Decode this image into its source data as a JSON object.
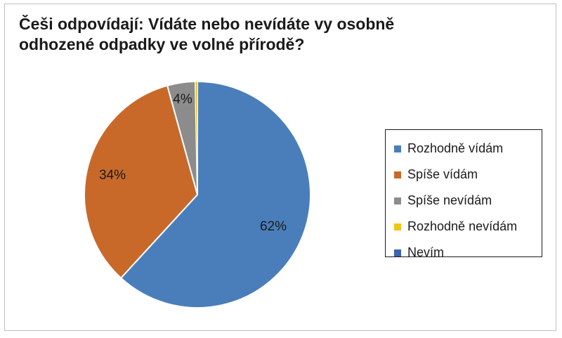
{
  "chart_data": {
    "type": "pie",
    "title": "Češi odpovídají: Vídáte nebo nevídáte vy osobně odhozené odpadky ve volné přírodě?",
    "categories": [
      "Rozhodně vídám",
      "Spíše vídám",
      "Spíše nevídám",
      "Rozhodně nevídám",
      "Nevím"
    ],
    "values": [
      62,
      34,
      4,
      0.3,
      0
    ],
    "data_labels": [
      "62%",
      "34%",
      "4%",
      "",
      ""
    ],
    "colors": [
      "#4a7ebb",
      "#c8692a",
      "#8c8c8c",
      "#f0c419",
      "#3b64b0"
    ],
    "legend_position": "right",
    "start_angle_deg": 0,
    "direction": "clockwise"
  }
}
